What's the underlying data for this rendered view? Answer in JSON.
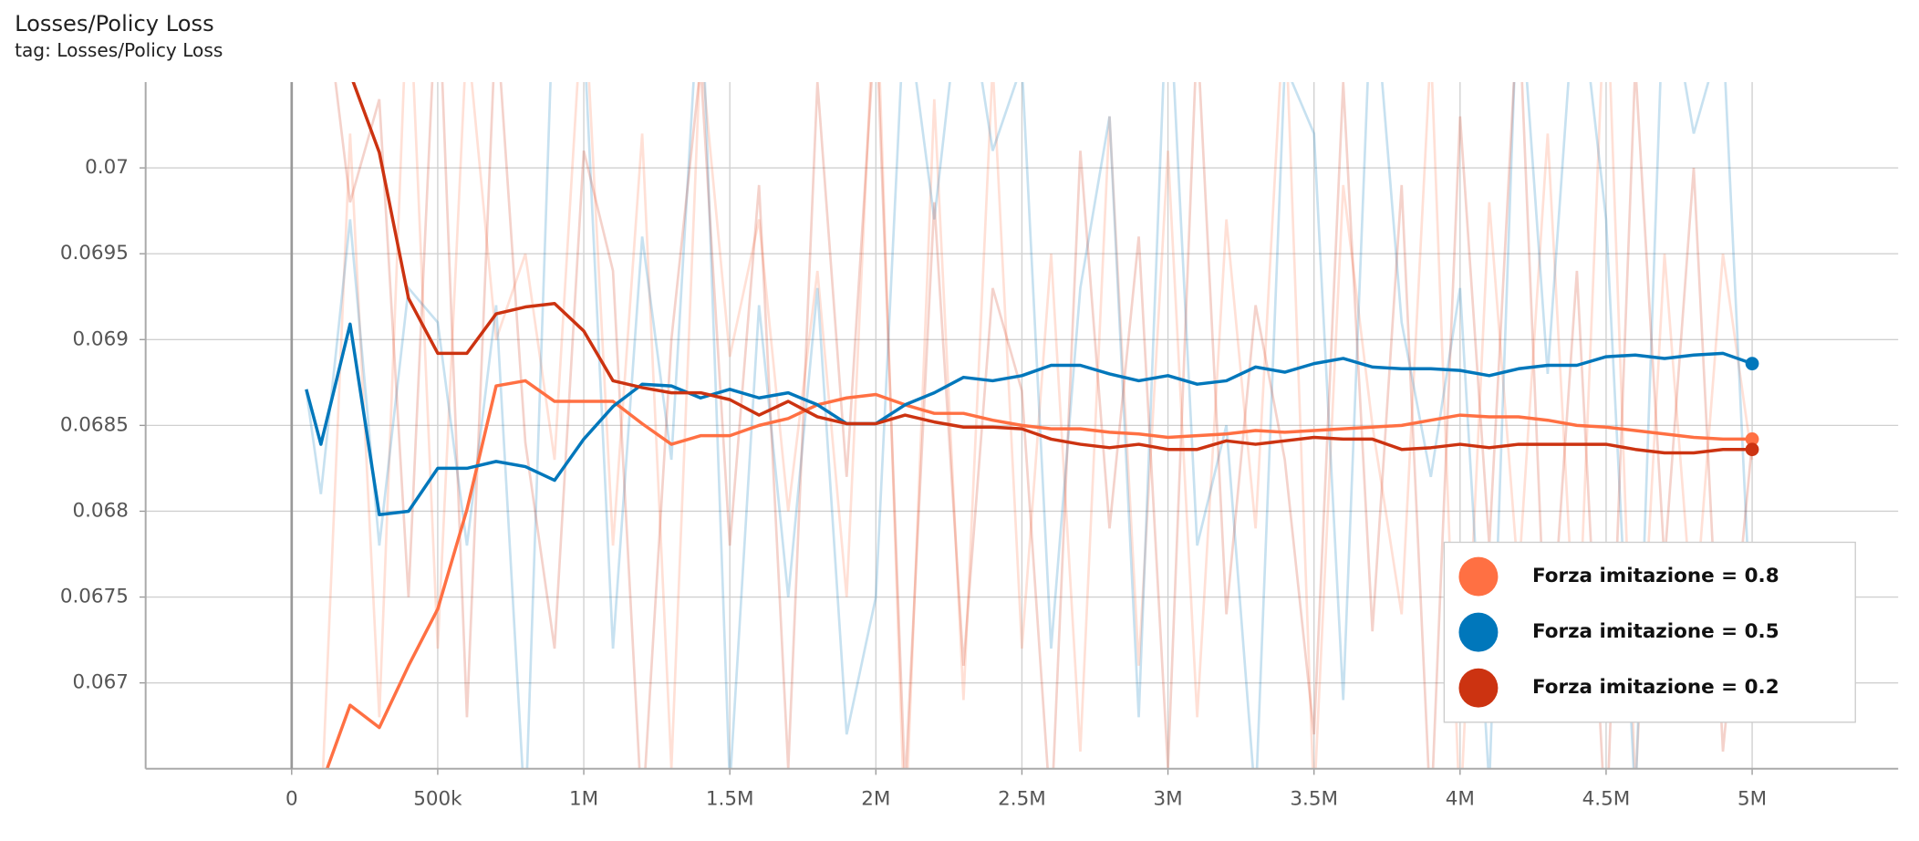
{
  "chart_data": {
    "type": "line",
    "title": "Losses/Policy Loss",
    "subtitle": "tag: Losses/Policy Loss",
    "x": [
      50000,
      100000,
      200000,
      300000,
      400000,
      500000,
      600000,
      700000,
      800000,
      900000,
      1000000,
      1100000,
      1200000,
      1300000,
      1400000,
      1500000,
      1600000,
      1700000,
      1800000,
      1900000,
      2000000,
      2100000,
      2200000,
      2300000,
      2400000,
      2500000,
      2600000,
      2700000,
      2800000,
      2900000,
      3000000,
      3100000,
      3200000,
      3300000,
      3400000,
      3500000,
      3600000,
      3700000,
      3800000,
      3900000,
      4000000,
      4100000,
      4200000,
      4300000,
      4400000,
      4500000,
      4600000,
      4700000,
      4800000,
      4900000,
      5000000
    ],
    "xlim": [
      -500000,
      5500000
    ],
    "xticks": [
      0,
      {
        "value": 500000,
        "label": "500k"
      },
      {
        "value": 1000000,
        "label": "1M"
      },
      {
        "value": 1500000,
        "label": "1.5M"
      },
      {
        "value": 2000000,
        "label": "2M"
      },
      {
        "value": 2500000,
        "label": "2.5M"
      },
      {
        "value": 3000000,
        "label": "3M"
      },
      {
        "value": 3500000,
        "label": "3.5M"
      },
      {
        "value": 4000000,
        "label": "4M"
      },
      {
        "value": 4500000,
        "label": "4.5M"
      },
      {
        "value": 5000000,
        "label": "5M"
      }
    ],
    "ylim": [
      0.0665,
      0.0705
    ],
    "yticks": [
      0.067,
      0.0675,
      0.068,
      0.0685,
      0.069,
      0.0695,
      0.07
    ],
    "grid": true,
    "legend": "lower right",
    "series": [
      {
        "name": "Forza imitazione = 0.8",
        "color": "#ff7043",
        "values": [
          null,
          0.0664,
          0.06687,
          0.06674,
          0.0671,
          0.06743,
          0.06801,
          0.06873,
          0.06876,
          0.06864,
          0.06864,
          0.06864,
          0.06851,
          0.06839,
          0.06844,
          0.06844,
          0.0685,
          0.06854,
          0.06862,
          0.06866,
          0.06868,
          0.06862,
          0.06857,
          0.06857,
          0.06853,
          0.0685,
          0.06848,
          0.06848,
          0.06846,
          0.06845,
          0.06843,
          0.06844,
          0.06845,
          0.06847,
          0.06846,
          0.06847,
          0.06848,
          0.06849,
          0.0685,
          0.06853,
          0.06856,
          0.06855,
          0.06855,
          0.06853,
          0.0685,
          0.06849,
          0.06847,
          0.06845,
          0.06843,
          0.06842,
          0.06842
        ],
        "raw_values": [
          null,
          0.0662,
          0.0702,
          0.0668,
          0.0712,
          0.0672,
          0.0708,
          0.069,
          0.0695,
          0.0683,
          0.0711,
          0.0678,
          0.0702,
          0.0665,
          0.0707,
          0.0689,
          0.0697,
          0.068,
          0.0694,
          0.0675,
          0.0712,
          0.0661,
          0.0704,
          0.0669,
          0.0706,
          0.0672,
          0.0695,
          0.0666,
          0.0703,
          0.0671,
          0.0701,
          0.0668,
          0.0697,
          0.0679,
          0.071,
          0.0663,
          0.0699,
          0.0685,
          0.0674,
          0.0707,
          0.0662,
          0.0698,
          0.0676,
          0.0702,
          0.067,
          0.0712,
          0.0664,
          0.0695,
          0.0673,
          0.0695,
          0.0683
        ]
      },
      {
        "name": "Forza imitazione = 0.5",
        "color": "#0077bb",
        "values": [
          0.06871,
          0.06839,
          0.06909,
          0.06798,
          0.068,
          0.06825,
          0.06825,
          0.06829,
          0.06826,
          0.06818,
          0.06842,
          0.06861,
          0.06874,
          0.06873,
          0.06866,
          0.06871,
          0.06866,
          0.06869,
          0.06862,
          0.06851,
          0.06851,
          0.06862,
          0.06869,
          0.06878,
          0.06876,
          0.06879,
          0.06885,
          0.06885,
          0.0688,
          0.06876,
          0.06879,
          0.06874,
          0.06876,
          0.06884,
          0.06881,
          0.06886,
          0.06889,
          0.06884,
          0.06883,
          0.06883,
          0.06882,
          0.06879,
          0.06883,
          0.06885,
          0.06885,
          0.0689,
          0.06891,
          0.06889,
          0.06891,
          0.06892,
          0.06886
        ],
        "raw_values": [
          0.0687,
          0.0681,
          0.0697,
          0.0678,
          0.0693,
          0.0691,
          0.0678,
          0.0692,
          0.0662,
          0.0712,
          0.0708,
          0.0672,
          0.0696,
          0.0683,
          0.0712,
          0.0664,
          0.0692,
          0.0675,
          0.0693,
          0.0667,
          0.0675,
          0.071,
          0.0697,
          0.0712,
          0.0701,
          0.0706,
          0.0672,
          0.0693,
          0.0703,
          0.0668,
          0.0712,
          0.0678,
          0.0685,
          0.0663,
          0.0706,
          0.0702,
          0.0669,
          0.0712,
          0.0691,
          0.0682,
          0.0693,
          0.0664,
          0.0712,
          0.0688,
          0.0712,
          0.0697,
          0.0663,
          0.0712,
          0.0702,
          0.0708,
          0.0672
        ]
      },
      {
        "name": "Forza imitazione = 0.2",
        "color": "#cc3311",
        "values": [
          null,
          0.0708,
          0.07055,
          0.07009,
          0.06924,
          0.06892,
          0.06892,
          0.06915,
          0.06919,
          0.06921,
          0.06905,
          0.06876,
          0.06872,
          0.06869,
          0.06869,
          0.06865,
          0.06856,
          0.06864,
          0.06855,
          0.06851,
          0.06851,
          0.06856,
          0.06852,
          0.06849,
          0.06849,
          0.06848,
          0.06842,
          0.06839,
          0.06837,
          0.06839,
          0.06836,
          0.06836,
          0.06841,
          0.06839,
          0.06841,
          0.06843,
          0.06842,
          0.06842,
          0.06836,
          0.06837,
          0.06839,
          0.06837,
          0.06839,
          0.06839,
          0.06839,
          0.06839,
          0.06836,
          0.06834,
          0.06834,
          0.06836,
          0.06836
        ],
        "raw_values": [
          null,
          0.0712,
          0.0698,
          0.0704,
          0.0675,
          0.0712,
          0.0668,
          0.0709,
          0.0684,
          0.0672,
          0.0701,
          0.0694,
          0.0662,
          0.069,
          0.0706,
          0.0678,
          0.0699,
          0.0665,
          0.0705,
          0.0682,
          0.0709,
          0.0664,
          0.0698,
          0.0671,
          0.0693,
          0.0687,
          0.0662,
          0.0701,
          0.0679,
          0.0696,
          0.0665,
          0.0708,
          0.0674,
          0.0692,
          0.0683,
          0.0667,
          0.0705,
          0.0673,
          0.0699,
          0.0662,
          0.0703,
          0.0678,
          0.071,
          0.0669,
          0.0694,
          0.0661,
          0.0706,
          0.0677,
          0.07,
          0.0666,
          0.0684
        ]
      }
    ]
  }
}
